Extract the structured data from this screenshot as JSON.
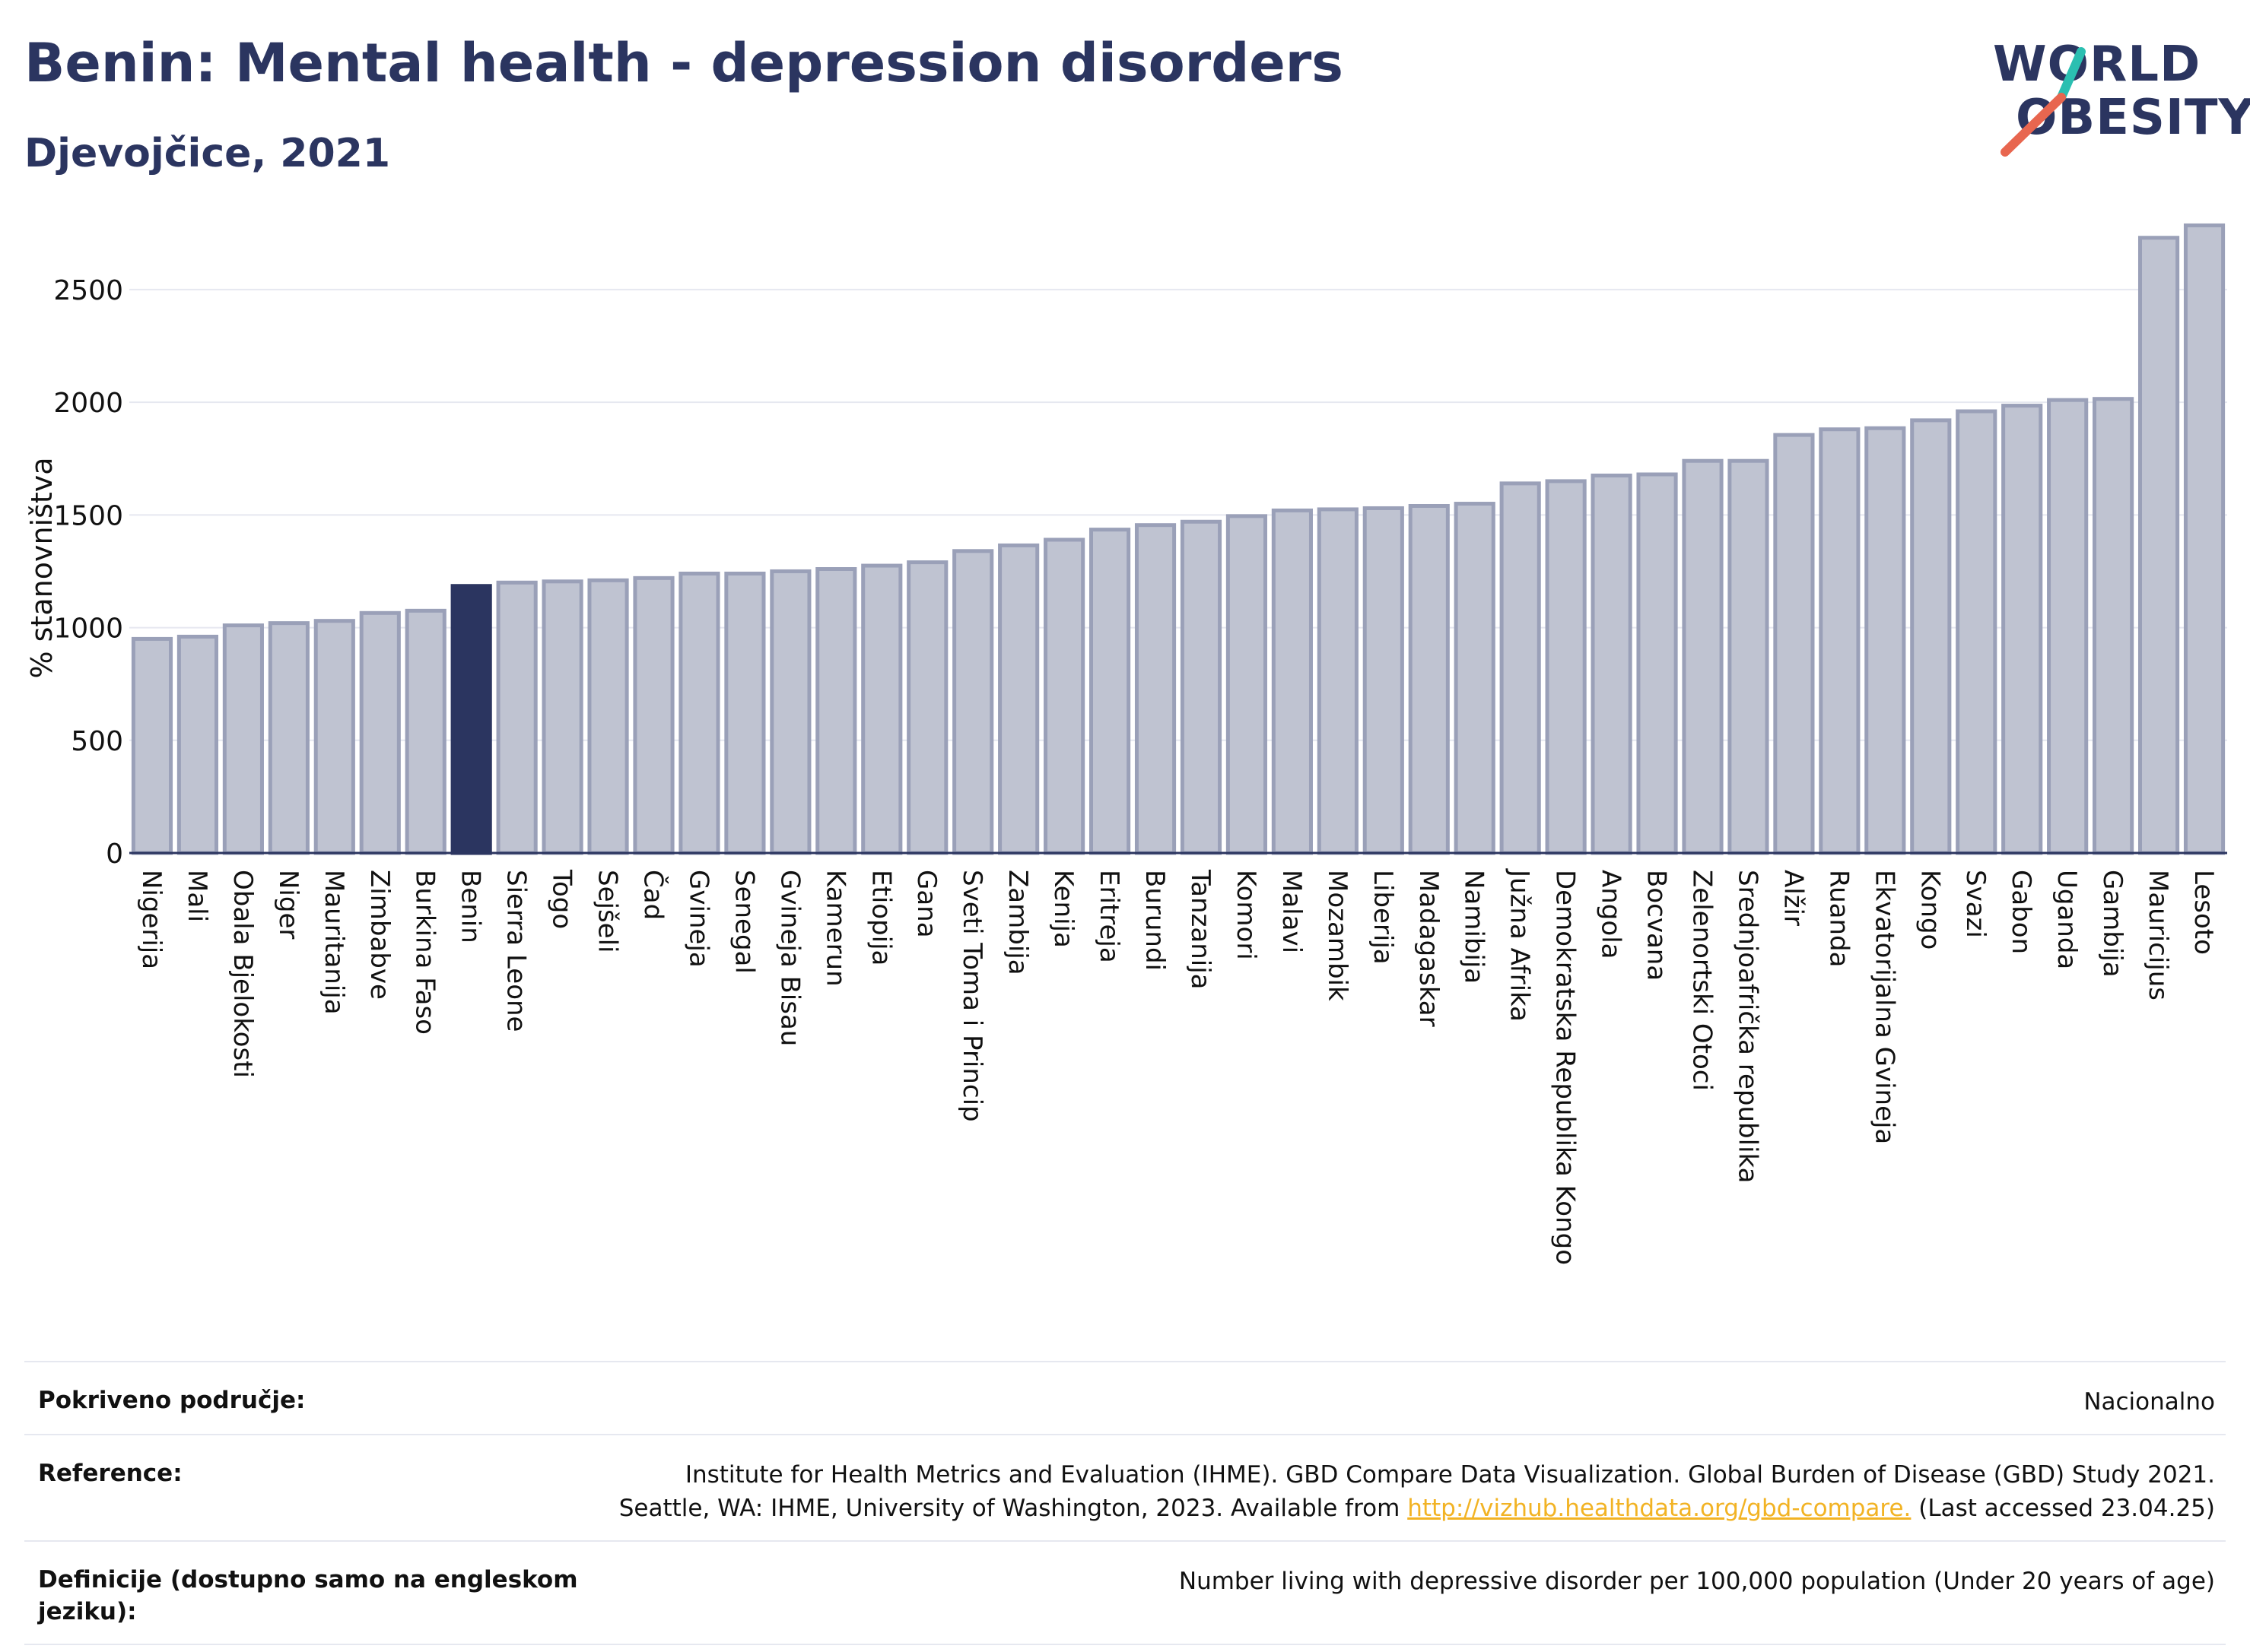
{
  "header": {
    "title": "Benin: Mental health - depression disorders",
    "subtitle": "Djevojčice, 2021"
  },
  "logo": {
    "line1": "WORLD",
    "line2": "OBESITY",
    "accent_teal": "#2bbfb1",
    "accent_coral": "#e8664f"
  },
  "chart_data": {
    "type": "bar",
    "title": "Benin: Mental health - depression disorders",
    "subtitle": "Djevojčice, 2021",
    "ylabel": "% stanovništva",
    "xlabel": "",
    "ylim": [
      0,
      2800
    ],
    "yticks": [
      0,
      500,
      1000,
      1500,
      2000,
      2500
    ],
    "grid": true,
    "highlight": "Benin",
    "colors": {
      "bar": "#bfc3d1",
      "bar_edge": "#9aa0b8",
      "highlight": "#2b3560"
    },
    "categories": [
      "Nigerija",
      "Mali",
      "Obala Bjelokosti",
      "Niger",
      "Mauritanija",
      "Zimbabve",
      "Burkina Faso",
      "Benin",
      "Sierra Leone",
      "Togo",
      "Sejšeli",
      "Čad",
      "Gvineja",
      "Senegal",
      "Gvineja Bisau",
      "Kamerun",
      "Etiopija",
      "Gana",
      "Sveti Toma i Princip",
      "Zambija",
      "Kenija",
      "Eritreja",
      "Burundi",
      "Tanzanija",
      "Komori",
      "Malavi",
      "Mozambik",
      "Liberija",
      "Madagaskar",
      "Namibija",
      "Južna Afrika",
      "Demokratska Republika Kongo",
      "Angola",
      "Bocvana",
      "Zelenortski Otoci",
      "Srednjoafrička republika",
      "Alžir",
      "Ruanda",
      "Ekvatorijalna Gvineja",
      "Kongo",
      "Svazi",
      "Gabon",
      "Uganda",
      "Gambija",
      "Mauricijus",
      "Lesoto"
    ],
    "values": [
      950,
      960,
      1010,
      1020,
      1030,
      1065,
      1075,
      1185,
      1200,
      1205,
      1210,
      1220,
      1240,
      1240,
      1250,
      1260,
      1275,
      1290,
      1340,
      1365,
      1390,
      1435,
      1455,
      1470,
      1495,
      1520,
      1525,
      1530,
      1540,
      1550,
      1640,
      1650,
      1675,
      1680,
      1740,
      1740,
      1855,
      1880,
      1885,
      1920,
      1960,
      1985,
      2010,
      2015,
      2730,
      2785
    ]
  },
  "footer": {
    "rows": [
      {
        "label": "Pokriveno područje:",
        "value": "Nacionalno"
      },
      {
        "label": "Reference:",
        "value_line1": "Institute for Health Metrics and Evaluation (IHME). GBD Compare Data Visualization. Global Burden of Disease (GBD) Study 2021.",
        "value_line2_pre": "Seattle, WA: IHME, University of Washington, 2023. Available from ",
        "link": "http://vizhub.healthdata.org/gbd-compare.",
        "value_line2_post": " (Last accessed 23.04.25)"
      },
      {
        "label": "Definicije (dostupno samo na engleskom jeziku):",
        "value": "Number living with depressive disorder per 100,000 population (Under 20 years of age)"
      }
    ]
  }
}
